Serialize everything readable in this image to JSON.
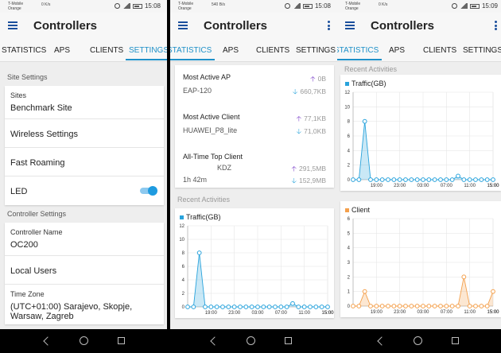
{
  "colors": {
    "accent": "#1e90c8",
    "upload": "#7a3fc9",
    "download": "#32a8dc",
    "traffic": "#29a3dc",
    "client": "#f4a04c"
  },
  "status": [
    {
      "carrier": "T-Mobile",
      "operator": "Orange",
      "speed": "0 K/s",
      "time": "15:08"
    },
    {
      "carrier": "T-Mobile",
      "operator": "Orange",
      "speed": "540 B/s",
      "time": "15:08"
    },
    {
      "carrier": "T-Mobile",
      "operator": "Orange",
      "speed": "0 K/s",
      "time": "15:09"
    }
  ],
  "app": {
    "title": "Controllers"
  },
  "tabs_s1": [
    "STATISTICS",
    "APS",
    "CLIENTS",
    "SETTINGS"
  ],
  "tabs_s2": [
    "STATISTICS",
    "APS",
    "CLIENTS",
    "SETTINGS"
  ],
  "tabs_s3": [
    "STATISTICS",
    "APS",
    "CLIENTS",
    "SETTINGS"
  ],
  "settings": {
    "site_settings_title": "Site Settings",
    "sites_label": "Sites",
    "sites_value": "Benchmark Site",
    "wireless": "Wireless Settings",
    "roaming": "Fast Roaming",
    "led": "LED",
    "led_on": true,
    "controller_settings_title": "Controller Settings",
    "controller_name_label": "Controller Name",
    "controller_name_value": "OC200",
    "local_users": "Local Users",
    "timezone_label": "Time Zone",
    "timezone_value": "(UTC+01:00) Sarajevo, Skopje, Warsaw, Zagreb"
  },
  "stats": {
    "most_active_ap": "Most Active AP",
    "ap_name": "EAP-120",
    "ap_up": "0B",
    "ap_down": "660,7KB",
    "most_active_client": "Most Active Client",
    "client_name": "HUAWEI_P8_lite",
    "client_up": "77,1KB",
    "client_down": "71,0KB",
    "top_client": "All-Time Top Client",
    "top_client_name": "KDZ",
    "top_client_up": "291,5MB",
    "top_client_duration": "1h 42m",
    "top_client_down": "152,9MB",
    "recent": "Recent Activities"
  },
  "chart_data": [
    {
      "type": "area",
      "title": "Traffic(GB)",
      "x": [
        "15:00",
        "16:00",
        "17:00",
        "18:00",
        "19:00",
        "20:00",
        "21:00",
        "22:00",
        "23:00",
        "00:00",
        "01:00",
        "02:00",
        "03:00",
        "04:00",
        "05:00",
        "06:00",
        "07:00",
        "08:00",
        "09:00",
        "10:00",
        "11:00",
        "12:00",
        "13:00",
        "14:00",
        "15:00"
      ],
      "xticks": [
        "15:00",
        "19:00",
        "23:00",
        "03:00",
        "07:00",
        "11:00",
        "15:00"
      ],
      "yticks": [
        0,
        2,
        4,
        6,
        8,
        10,
        12
      ],
      "ylim": [
        0,
        12
      ],
      "values": [
        0,
        0,
        8,
        0,
        0,
        0,
        0,
        0,
        0,
        0,
        0,
        0,
        0,
        0,
        0,
        0,
        0,
        0,
        0.5,
        0,
        0,
        0,
        0,
        0,
        0
      ]
    },
    {
      "type": "area",
      "title": "Client",
      "x": [
        "15:00",
        "16:00",
        "17:00",
        "18:00",
        "19:00",
        "20:00",
        "21:00",
        "22:00",
        "23:00",
        "00:00",
        "01:00",
        "02:00",
        "03:00",
        "04:00",
        "05:00",
        "06:00",
        "07:00",
        "08:00",
        "09:00",
        "10:00",
        "11:00",
        "12:00",
        "13:00",
        "14:00",
        "15:00"
      ],
      "xticks": [
        "15:00",
        "19:00",
        "23:00",
        "03:00",
        "07:00",
        "11:00",
        "15:00"
      ],
      "yticks": [
        0,
        1,
        2,
        3,
        4,
        5,
        6
      ],
      "ylim": [
        0,
        6
      ],
      "values": [
        0,
        0,
        1,
        0,
        0,
        0,
        0,
        0,
        0,
        0,
        0,
        0,
        0,
        0,
        0,
        0,
        0,
        0,
        0,
        2,
        0,
        0,
        0,
        0,
        1
      ]
    }
  ]
}
